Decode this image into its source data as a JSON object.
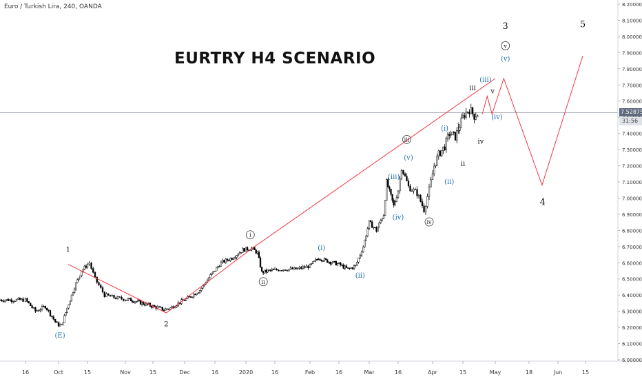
{
  "header": {
    "symbol": "Euro / Turkish Lira, 240, OANDA"
  },
  "title": "EURTRY H4 SCENARIO",
  "price_tag": {
    "value": "7.52875",
    "timer": "31:56"
  },
  "colors": {
    "projection": "#f23645",
    "waves_blue": "#1e6fae",
    "candle": "#000000",
    "price_line": "#a0a8b3"
  },
  "chart_data": {
    "type": "candlestick",
    "instrument": "EURTRY",
    "timeframe": "240",
    "source": "OANDA",
    "y_axis": {
      "ticks": [
        "6.00000",
        "6.10000",
        "6.20000",
        "6.30000",
        "6.40000",
        "6.50000",
        "6.60000",
        "6.70000",
        "6.80000",
        "6.90000",
        "7.00000",
        "7.10000",
        "7.20000",
        "7.30000",
        "7.40000",
        "7.50000",
        "7.60000",
        "7.70000",
        "7.80000",
        "7.90000",
        "8.00000",
        "8.10000",
        "8.20000"
      ],
      "range": [
        5.99,
        8.22
      ]
    },
    "x_axis": {
      "ticks": [
        {
          "label": "16",
          "index": 0
        },
        {
          "label": "Oct",
          "index": 1
        },
        {
          "label": "15",
          "index": 2
        },
        {
          "label": "Nov",
          "index": 3
        },
        {
          "label": "15",
          "index": 4
        },
        {
          "label": "Dec",
          "index": 5
        },
        {
          "label": "16",
          "index": 6
        },
        {
          "label": "2020",
          "index": 7
        },
        {
          "label": "16",
          "index": 8
        },
        {
          "label": "Feb",
          "index": 9
        },
        {
          "label": "16",
          "index": 10
        },
        {
          "label": "Mar",
          "index": 11
        },
        {
          "label": "16",
          "index": 12
        },
        {
          "label": "Apr",
          "index": 13
        },
        {
          "label": "15",
          "index": 14
        },
        {
          "label": "May",
          "index": 15
        },
        {
          "label": "18",
          "index": 16
        },
        {
          "label": "Jun",
          "index": 17
        },
        {
          "label": "15",
          "index": 18
        }
      ]
    },
    "current_price": 7.52875,
    "price_path": [
      [
        0.0,
        6.37
      ],
      [
        0.3,
        6.3
      ],
      [
        0.6,
        6.33
      ],
      [
        0.95,
        6.22
      ],
      [
        1.1,
        6.21
      ],
      [
        1.3,
        6.32
      ],
      [
        1.55,
        6.45
      ],
      [
        1.8,
        6.55
      ],
      [
        2.05,
        6.6
      ],
      [
        2.2,
        6.5
      ],
      [
        2.45,
        6.4
      ],
      [
        2.8,
        6.38
      ],
      [
        3.2,
        6.37
      ],
      [
        3.6,
        6.35
      ],
      [
        4.0,
        6.33
      ],
      [
        4.35,
        6.31
      ],
      [
        4.55,
        6.32
      ],
      [
        4.8,
        6.35
      ],
      [
        5.1,
        6.38
      ],
      [
        5.5,
        6.43
      ],
      [
        5.85,
        6.52
      ],
      [
        6.2,
        6.6
      ],
      [
        6.55,
        6.63
      ],
      [
        6.9,
        6.68
      ],
      [
        7.2,
        6.69
      ],
      [
        7.4,
        6.66
      ],
      [
        7.55,
        6.54
      ],
      [
        7.8,
        6.55
      ],
      [
        8.2,
        6.56
      ],
      [
        8.6,
        6.56
      ],
      [
        9.0,
        6.58
      ],
      [
        9.3,
        6.63
      ],
      [
        9.6,
        6.61
      ],
      [
        10.0,
        6.59
      ],
      [
        10.3,
        6.56
      ],
      [
        10.55,
        6.58
      ],
      [
        10.8,
        6.7
      ],
      [
        11.0,
        6.85
      ],
      [
        11.25,
        6.8
      ],
      [
        11.5,
        6.9
      ],
      [
        11.6,
        7.1
      ],
      [
        11.85,
        6.95
      ],
      [
        12.0,
        7.05
      ],
      [
        12.1,
        7.19
      ],
      [
        12.3,
        7.07
      ],
      [
        12.55,
        7.03
      ],
      [
        12.75,
        6.93
      ],
      [
        12.9,
        7.05
      ],
      [
        13.05,
        7.2
      ],
      [
        13.2,
        7.27
      ],
      [
        13.4,
        7.32
      ],
      [
        13.55,
        7.4
      ],
      [
        13.75,
        7.38
      ],
      [
        13.9,
        7.45
      ],
      [
        14.05,
        7.52
      ],
      [
        14.2,
        7.55
      ],
      [
        14.35,
        7.51
      ],
      [
        14.5,
        7.53
      ]
    ],
    "projection": [
      [
        1.33,
        6.59
      ],
      [
        4.42,
        6.29
      ],
      [
        7.22,
        6.69
      ],
      [
        15.0,
        7.74
      ]
    ],
    "projection_zigzag": [
      [
        14.6,
        7.52
      ],
      [
        14.75,
        7.63
      ],
      [
        14.9,
        7.52
      ],
      [
        15.25,
        7.74
      ],
      [
        16.45,
        7.08
      ],
      [
        17.9,
        7.88
      ]
    ],
    "wave_labels": [
      {
        "text": "(E)",
        "style": "blue",
        "x": 1.05,
        "y": 6.15
      },
      {
        "text": "1",
        "style": "black",
        "x": 1.33,
        "y": 6.68
      },
      {
        "text": "2",
        "style": "black",
        "x": 4.42,
        "y": 6.22
      },
      {
        "text": "i",
        "style": "circle",
        "x": 7.15,
        "y": 6.76
      },
      {
        "text": "ii",
        "style": "circle",
        "x": 7.6,
        "y": 6.47
      },
      {
        "text": "(i)",
        "style": "blue",
        "x": 9.4,
        "y": 6.69
      },
      {
        "text": "(ii)",
        "style": "blue",
        "x": 10.7,
        "y": 6.52
      },
      {
        "text": "(iii)",
        "style": "blue",
        "x": 11.85,
        "y": 7.13
      },
      {
        "text": "(iv)",
        "style": "blue",
        "x": 12.0,
        "y": 6.88
      },
      {
        "text": "iii",
        "style": "circle",
        "x": 12.25,
        "y": 7.35
      },
      {
        "text": "(v)",
        "style": "blue",
        "x": 12.3,
        "y": 7.25
      },
      {
        "text": "iv",
        "style": "circle",
        "x": 12.9,
        "y": 6.84
      },
      {
        "text": "(i)",
        "style": "blue",
        "x": 13.4,
        "y": 7.43
      },
      {
        "text": "(ii)",
        "style": "blue",
        "x": 13.55,
        "y": 7.1
      },
      {
        "text": "i",
        "style": "black",
        "x": 13.85,
        "y": 7.45
      },
      {
        "text": "ii",
        "style": "black",
        "x": 14.0,
        "y": 7.21
      },
      {
        "text": "iv",
        "style": "black",
        "x": 14.55,
        "y": 7.35
      },
      {
        "text": "iii",
        "style": "black",
        "x": 14.3,
        "y": 7.68
      },
      {
        "text": "(iii)",
        "style": "blue",
        "x": 14.7,
        "y": 7.73
      },
      {
        "text": "v",
        "style": "black",
        "x": 14.92,
        "y": 7.66
      },
      {
        "text": "(iv)",
        "style": "blue",
        "x": 15.05,
        "y": 7.5
      },
      {
        "text": "(v)",
        "style": "blue",
        "x": 15.3,
        "y": 7.86
      },
      {
        "text": "v",
        "style": "circle",
        "x": 15.3,
        "y": 7.93
      },
      {
        "text": "3",
        "style": "black-large",
        "x": 15.3,
        "y": 8.06
      },
      {
        "text": "4",
        "style": "black-large",
        "x": 16.47,
        "y": 6.97
      },
      {
        "text": "5",
        "style": "black-large",
        "x": 17.9,
        "y": 8.07
      }
    ]
  }
}
